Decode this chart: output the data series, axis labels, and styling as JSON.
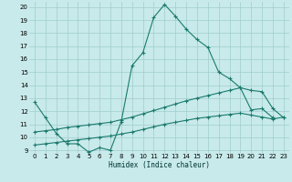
{
  "xlabel": "Humidex (Indice chaleur)",
  "ylabel": "",
  "xlim": [
    -0.5,
    23.5
  ],
  "ylim": [
    8.8,
    20.4
  ],
  "yticks": [
    9,
    10,
    11,
    12,
    13,
    14,
    15,
    16,
    17,
    18,
    19,
    20
  ],
  "xticks": [
    0,
    1,
    2,
    3,
    4,
    5,
    6,
    7,
    8,
    9,
    10,
    11,
    12,
    13,
    14,
    15,
    16,
    17,
    18,
    19,
    20,
    21,
    22,
    23
  ],
  "bg_color": "#c8eaea",
  "line_color": "#1a7a6e",
  "grid_color": "#a0cccc",
  "lines": [
    {
      "x": [
        0,
        1,
        2,
        3,
        4,
        5,
        6,
        7,
        8,
        9,
        10,
        11,
        12,
        13,
        14,
        15,
        16,
        17,
        18,
        19,
        20,
        21,
        22
      ],
      "y": [
        12.7,
        11.5,
        10.3,
        9.5,
        9.5,
        8.85,
        9.2,
        9.0,
        11.2,
        15.5,
        16.5,
        19.2,
        20.2,
        19.3,
        18.3,
        17.5,
        16.9,
        15.0,
        14.5,
        13.8,
        12.1,
        12.2,
        11.5
      ]
    },
    {
      "x": [
        0,
        1,
        2,
        3,
        4,
        5,
        6,
        7,
        8,
        9,
        10,
        11,
        12,
        13,
        14,
        15,
        16,
        17,
        18,
        19,
        20,
        21,
        22,
        23
      ],
      "y": [
        10.4,
        10.5,
        10.6,
        10.75,
        10.85,
        10.95,
        11.05,
        11.15,
        11.35,
        11.55,
        11.8,
        12.05,
        12.3,
        12.55,
        12.8,
        13.0,
        13.2,
        13.4,
        13.6,
        13.8,
        13.6,
        13.5,
        12.2,
        11.5
      ]
    },
    {
      "x": [
        0,
        1,
        2,
        3,
        4,
        5,
        6,
        7,
        8,
        9,
        10,
        11,
        12,
        13,
        14,
        15,
        16,
        17,
        18,
        19,
        20,
        21,
        22,
        23
      ],
      "y": [
        9.4,
        9.5,
        9.6,
        9.7,
        9.8,
        9.9,
        10.0,
        10.1,
        10.25,
        10.4,
        10.6,
        10.8,
        11.0,
        11.15,
        11.3,
        11.45,
        11.55,
        11.65,
        11.75,
        11.85,
        11.7,
        11.55,
        11.4,
        11.55
      ]
    }
  ]
}
